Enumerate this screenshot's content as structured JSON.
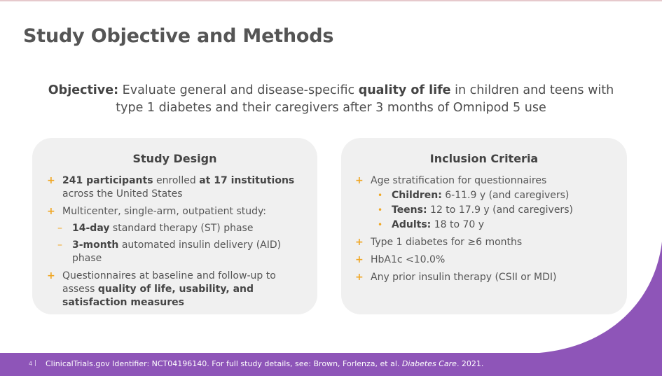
{
  "slide": {
    "title": "Study Objective and Methods",
    "page_number": "4",
    "page_separator": "|"
  },
  "objective": {
    "label": "Objective:",
    "text_part1": " Evaluate general and disease-specific ",
    "emphasis": "quality of life",
    "text_part2": " in children and teens with type 1 diabetes and their caregivers after 3 months of Omnipod 5 use"
  },
  "study_design": {
    "heading": "Study Design",
    "item1": {
      "bold1": "241 participants",
      "text1": " enrolled ",
      "bold2": "at 17 institutions",
      "text2": " across the United States"
    },
    "item2": {
      "text": "Multicenter, single-arm, outpatient study:"
    },
    "phase1": {
      "bold": "14-day",
      "text": " standard therapy (ST) phase"
    },
    "phase2": {
      "bold": "3-month",
      "text": " automated insulin delivery (AID) phase"
    },
    "item3": {
      "text": "Questionnaires at baseline and follow-up to assess ",
      "bold": "quality of life, usability, and satisfaction measures"
    }
  },
  "inclusion_criteria": {
    "heading": "Inclusion Criteria",
    "item1": "Age stratification for questionnaires",
    "groups": [
      {
        "label": "Children:",
        "text": " 6-11.9 y (and caregivers)"
      },
      {
        "label": "Teens:",
        "text": " 12 to 17.9 y (and caregivers)"
      },
      {
        "label": "Adults:",
        "text": " 18 to 70 y"
      }
    ],
    "item2": "Type 1 diabetes for ≥6 months",
    "item3": "HbA1c <10.0%",
    "item4": "Any prior insulin therapy (CSII or MDI)"
  },
  "footer": {
    "citation_text": "ClinicalTrials.gov Identifier: NCT04196140. For full study details, see: Brown, Forlenza, et al. ",
    "journal": "Diabetes Care",
    "year": ". 2021."
  },
  "colors": {
    "accent_orange": "#f0a623",
    "footer_purple": "#8e55b8",
    "card_gray": "#f0f0f0"
  },
  "icons": {
    "bullet": "plus-bullet-icon",
    "sub_bullet": "dash-bullet-icon",
    "dot_bullet": "dot-bullet-icon"
  }
}
